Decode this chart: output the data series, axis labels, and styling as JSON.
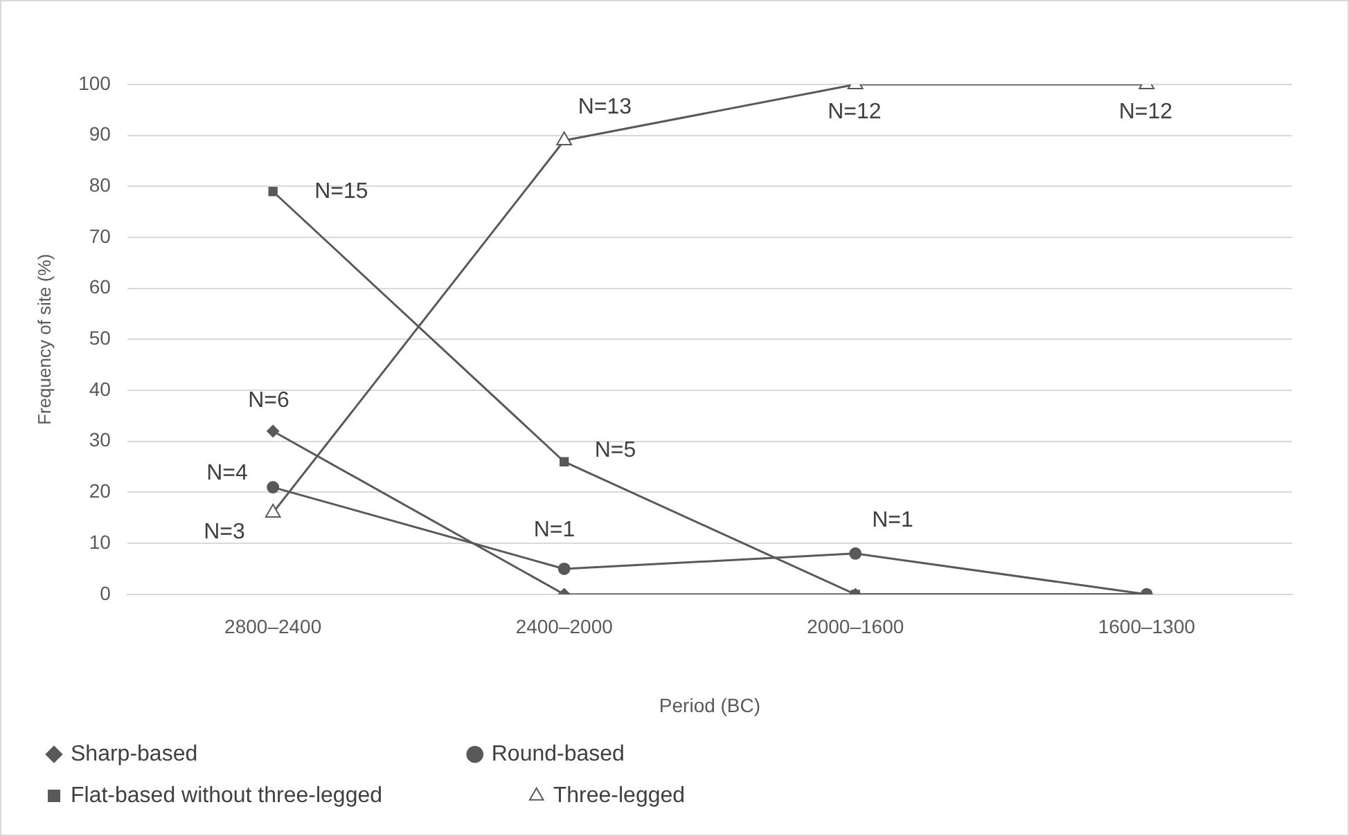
{
  "chart_data": {
    "type": "line",
    "xlabel": "Period (BC)",
    "ylabel": "Frequency of site (%)",
    "categories": [
      "2800–2400",
      "2400–2000",
      "2000–1600",
      "1600–1300"
    ],
    "series": [
      {
        "name": "Sharp-based",
        "color": "#595959",
        "marker": "diamond",
        "values": [
          32,
          0,
          0,
          0
        ]
      },
      {
        "name": "Round-based",
        "color": "#595959",
        "marker": "circle",
        "values": [
          21,
          5,
          8,
          0
        ]
      },
      {
        "name": "Flat-based without three-legged",
        "color": "#595959",
        "marker": "square",
        "values": [
          79,
          26,
          0,
          0
        ]
      },
      {
        "name": "Three-legged",
        "color": "#595959",
        "marker": "triangle",
        "values": [
          16,
          89,
          100,
          100
        ]
      }
    ],
    "ylim": [
      0,
      100
    ],
    "yticks": [
      0,
      10,
      20,
      30,
      40,
      50,
      60,
      70,
      80,
      90,
      100
    ],
    "grid": "y",
    "legend": "bottom",
    "annotations": [
      {
        "text": "N=6",
        "x": "2800–2400",
        "y": 32
      },
      {
        "text": "N=4",
        "x": "2800–2400",
        "y": 21
      },
      {
        "text": "N=3",
        "x": "2800–2400",
        "y": 16
      },
      {
        "text": "N=15",
        "x": "2800–2400",
        "y": 79
      },
      {
        "text": "N=13",
        "x": "2400–2000",
        "y": 89
      },
      {
        "text": "N=5",
        "x": "2400–2000",
        "y": 26
      },
      {
        "text": "N=1",
        "x": "2400–2000",
        "y": 5
      },
      {
        "text": "N=1",
        "x": "2000–1600",
        "y": 8
      },
      {
        "text": "N=12",
        "x": "2000–1600",
        "y": 100
      },
      {
        "text": "N=12",
        "x": "1600–1300",
        "y": 100
      }
    ]
  }
}
